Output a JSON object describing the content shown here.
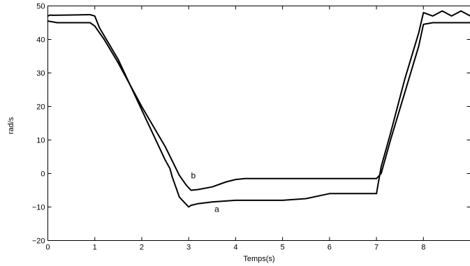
{
  "chart_data": {
    "type": "line",
    "title": "",
    "xlabel": "Temps(s)",
    "ylabel": "rad/s",
    "xlim": [
      0,
      9
    ],
    "ylim": [
      -20,
      50
    ],
    "xticks": [
      0,
      1,
      2,
      3,
      4,
      5,
      6,
      7,
      8
    ],
    "xtick_labels": [
      "0",
      "1",
      "2",
      "3",
      "4",
      "5",
      "6",
      "7",
      "8"
    ],
    "yticks": [
      -20,
      -10,
      0,
      10,
      20,
      30,
      40,
      50
    ],
    "ytick_labels": [
      "−20",
      "−10",
      "0",
      "10",
      "20",
      "30",
      "40",
      "50"
    ],
    "grid": false,
    "line_color": "#000000",
    "series": [
      {
        "x": [
          0,
          0.05,
          0.1,
          0.5,
          0.9,
          1.0,
          1.1,
          1.5,
          2.0,
          2.5,
          2.6,
          2.65,
          2.7,
          2.75,
          2.8,
          2.9,
          3.0,
          3.05,
          3.2,
          3.5,
          4.0,
          4.5,
          5.0,
          5.5,
          6.0,
          6.5,
          7.0,
          7.05,
          7.1,
          7.3,
          7.6,
          7.9,
          8.0,
          8.2,
          8.4,
          8.6,
          8.8,
          9.0
        ],
        "y": [
          47.0,
          47.3,
          47.2,
          47.3,
          47.4,
          47.0,
          43.5,
          34.0,
          19.0,
          4.0,
          1.5,
          -1.0,
          -3.0,
          -5.0,
          -7.0,
          -8.5,
          -10.0,
          -9.5,
          -9.0,
          -8.5,
          -8.0,
          -8.0,
          -8.0,
          -7.5,
          -6.0,
          -6.0,
          -6.0,
          -2.0,
          2.0,
          12.0,
          28.0,
          42.0,
          48.0,
          47.0,
          48.5,
          47.0,
          48.5,
          47.0
        ]
      },
      {
        "x": [
          0,
          0.2,
          0.5,
          0.9,
          1.0,
          1.2,
          1.5,
          2.0,
          2.5,
          2.8,
          2.95,
          3.05,
          3.2,
          3.5,
          3.8,
          4.0,
          4.2,
          4.5,
          5.0,
          5.5,
          6.0,
          6.5,
          7.0,
          7.1,
          7.3,
          7.6,
          7.9,
          8.0,
          8.2,
          8.5,
          9.0
        ],
        "y": [
          45.5,
          45.0,
          45.0,
          45.0,
          44.0,
          40.0,
          33.0,
          20.0,
          8.0,
          -0.5,
          -3.5,
          -5.0,
          -4.8,
          -4.0,
          -2.5,
          -1.8,
          -1.5,
          -1.5,
          -1.5,
          -1.5,
          -1.5,
          -1.5,
          -1.5,
          0.0,
          10.0,
          24.0,
          38.0,
          44.5,
          45.0,
          45.0,
          45.0
        ]
      }
    ],
    "annotations": [
      {
        "text": "a",
        "x": 3.6,
        "y": -11.5
      },
      {
        "text": "b",
        "x": 3.1,
        "y": -1.5
      }
    ]
  }
}
